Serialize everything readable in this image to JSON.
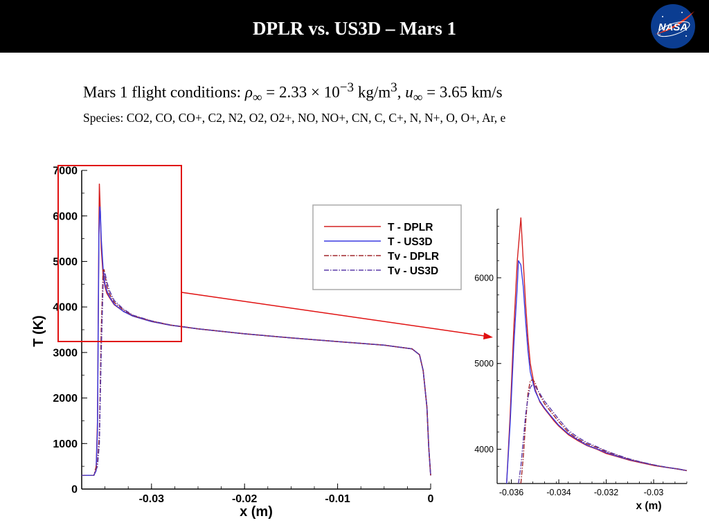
{
  "slide": {
    "title": "DPLR vs. US3D – Mars 1",
    "logo_text": "NASA",
    "conditions": {
      "prefix": "Mars 1 flight conditions: ",
      "rho_symbol": "ρ",
      "inf_sub": "∞",
      "rho_value": " = 2.33 × 10",
      "rho_exp": "−3",
      "rho_unit": " kg/m",
      "rho_unit_exp": "3",
      "sep": ", ",
      "u_symbol": "u",
      "u_value": " = 3.65 km/s"
    },
    "species": "Species: CO2, CO, CO+, C2, N2, O2, O2+, NO, NO+, CN, C, C+, N, N+, O, O+, Ar, e"
  },
  "colors": {
    "dplr": "#d42020",
    "us3d": "#3a3ae0",
    "tv_dplr": "#a0252a",
    "tv_us3d": "#5a3aa8",
    "highlight": "#e01010",
    "logo_blue": "#0b3d91",
    "logo_red": "#fc3d21"
  },
  "chart_data": [
    {
      "type": "line",
      "title": "",
      "xlabel": "x (m)",
      "ylabel": "T (K)",
      "xlim": [
        -0.0375,
        0.0
      ],
      "ylim": [
        0,
        7000
      ],
      "x_ticks": [
        -0.03,
        -0.02,
        -0.01,
        0
      ],
      "x_tick_labels": [
        "-0.03",
        "-0.02",
        "-0.01",
        "0"
      ],
      "y_ticks": [
        0,
        1000,
        2000,
        3000,
        4000,
        5000,
        6000,
        7000
      ],
      "y_tick_labels": [
        "0",
        "1000",
        "2000",
        "3000",
        "4000",
        "5000",
        "6000",
        "7000"
      ],
      "grid": false,
      "legend": "top-right",
      "series": [
        {
          "name": "T - DPLR",
          "style": "solid",
          "color_key": "dplr",
          "x": [
            -0.0375,
            -0.0362,
            -0.03595,
            -0.0358,
            -0.0357,
            -0.03565,
            -0.0356,
            -0.0355,
            -0.0354,
            -0.0352,
            -0.035,
            -0.0348,
            -0.0345,
            -0.034,
            -0.033,
            -0.032,
            -0.03,
            -0.028,
            -0.025,
            -0.02,
            -0.015,
            -0.01,
            -0.005,
            -0.002,
            -0.0012,
            -0.0008,
            -0.0004,
            -0.0002,
            0.0
          ],
          "y": [
            300,
            300,
            420,
            1500,
            4500,
            5800,
            6700,
            6100,
            5300,
            4700,
            4450,
            4300,
            4200,
            4050,
            3900,
            3800,
            3680,
            3600,
            3520,
            3410,
            3320,
            3240,
            3160,
            3080,
            2950,
            2600,
            1800,
            900,
            300
          ]
        },
        {
          "name": "T - US3D",
          "style": "solid",
          "color_key": "us3d",
          "x": [
            -0.0375,
            -0.0362,
            -0.03595,
            -0.0358,
            -0.0357,
            -0.03565,
            -0.03555,
            -0.0355,
            -0.0354,
            -0.0352,
            -0.035,
            -0.0348,
            -0.0345,
            -0.034,
            -0.033,
            -0.032,
            -0.03,
            -0.028,
            -0.025,
            -0.02,
            -0.015,
            -0.01,
            -0.005,
            -0.002,
            -0.0012,
            -0.0008,
            -0.0004,
            -0.0002,
            0.0
          ],
          "y": [
            300,
            300,
            400,
            1300,
            4200,
            5600,
            6200,
            6100,
            5500,
            4850,
            4500,
            4350,
            4220,
            4060,
            3900,
            3800,
            3680,
            3600,
            3520,
            3410,
            3320,
            3240,
            3160,
            3080,
            2950,
            2600,
            1800,
            900,
            300
          ]
        },
        {
          "name": "Tv - DPLR",
          "style": "dashdot",
          "color_key": "tv_dplr",
          "x": [
            -0.0375,
            -0.0362,
            -0.0358,
            -0.0356,
            -0.0354,
            -0.0352,
            -0.0351,
            -0.035,
            -0.0348,
            -0.0345,
            -0.034,
            -0.033,
            -0.032,
            -0.03,
            -0.028,
            -0.025,
            -0.02,
            -0.015,
            -0.01,
            -0.005,
            -0.002,
            -0.0012,
            -0.0008,
            -0.0004,
            -0.0002,
            0.0
          ],
          "y": [
            300,
            300,
            600,
            1200,
            3500,
            4800,
            4820,
            4700,
            4450,
            4280,
            4100,
            3930,
            3810,
            3690,
            3605,
            3520,
            3410,
            3320,
            3240,
            3160,
            3080,
            2950,
            2600,
            1800,
            900,
            300
          ]
        },
        {
          "name": "Tv - US3D",
          "style": "dashdot",
          "color_key": "tv_us3d",
          "x": [
            -0.0375,
            -0.0362,
            -0.0358,
            -0.0356,
            -0.0354,
            -0.0352,
            -0.0351,
            -0.035,
            -0.0348,
            -0.0345,
            -0.034,
            -0.033,
            -0.032,
            -0.03,
            -0.028,
            -0.025,
            -0.02,
            -0.015,
            -0.01,
            -0.005,
            -0.002,
            -0.0012,
            -0.0008,
            -0.0004,
            -0.0002,
            0.0
          ],
          "y": [
            300,
            300,
            500,
            1000,
            3000,
            4500,
            4700,
            4750,
            4550,
            4350,
            4140,
            3950,
            3820,
            3695,
            3605,
            3520,
            3410,
            3320,
            3240,
            3160,
            3080,
            2950,
            2600,
            1800,
            900,
            300
          ]
        }
      ]
    },
    {
      "type": "line",
      "title": "",
      "xlabel": "x (m)",
      "ylabel": "",
      "xlim": [
        -0.0366,
        -0.0286
      ],
      "ylim": [
        3600,
        6800
      ],
      "x_ticks": [
        -0.036,
        -0.034,
        -0.032,
        -0.03
      ],
      "x_tick_labels": [
        "-0.036",
        "-0.034",
        "-0.032",
        "-0.03"
      ],
      "y_ticks": [
        4000,
        5000,
        6000
      ],
      "y_tick_labels": [
        "4000",
        "5000",
        "6000"
      ],
      "grid": false,
      "legend": "none",
      "series": [
        {
          "name": "T - DPLR",
          "style": "solid",
          "color_key": "dplr",
          "x": [
            -0.0362,
            -0.03605,
            -0.0359,
            -0.03575,
            -0.0356,
            -0.0355,
            -0.0354,
            -0.0353,
            -0.0352,
            -0.035,
            -0.0348,
            -0.0346,
            -0.0344,
            -0.0342,
            -0.034,
            -0.0336,
            -0.0332,
            -0.0328,
            -0.0324,
            -0.032,
            -0.0315,
            -0.031,
            -0.0305,
            -0.03,
            -0.0295,
            -0.029,
            -0.0286
          ],
          "y": [
            3600,
            4400,
            5400,
            6200,
            6700,
            6200,
            5700,
            5300,
            5000,
            4700,
            4550,
            4470,
            4400,
            4330,
            4270,
            4170,
            4100,
            4040,
            4000,
            3950,
            3910,
            3870,
            3840,
            3810,
            3790,
            3770,
            3750
          ]
        },
        {
          "name": "T - US3D",
          "style": "solid",
          "color_key": "us3d",
          "x": [
            -0.0362,
            -0.03605,
            -0.0359,
            -0.03575,
            -0.0357,
            -0.0356,
            -0.0355,
            -0.0354,
            -0.0353,
            -0.0352,
            -0.035,
            -0.0348,
            -0.0346,
            -0.0344,
            -0.0342,
            -0.034,
            -0.0336,
            -0.0332,
            -0.0328,
            -0.0324,
            -0.032,
            -0.0315,
            -0.031,
            -0.0305,
            -0.03,
            -0.0295,
            -0.029,
            -0.0286
          ],
          "y": [
            3600,
            4300,
            5200,
            5900,
            6200,
            6150,
            5900,
            5500,
            5150,
            4900,
            4680,
            4560,
            4480,
            4410,
            4345,
            4280,
            4180,
            4110,
            4045,
            4005,
            3960,
            3915,
            3875,
            3845,
            3815,
            3790,
            3770,
            3750
          ]
        },
        {
          "name": "Tv - DPLR",
          "style": "dashdot",
          "color_key": "tv_dplr",
          "x": [
            -0.0356,
            -0.0355,
            -0.0354,
            -0.0353,
            -0.0352,
            -0.0351,
            -0.035,
            -0.0349,
            -0.0348,
            -0.0346,
            -0.0344,
            -0.0342,
            -0.034,
            -0.0336,
            -0.0332,
            -0.0328,
            -0.0324,
            -0.032,
            -0.0315,
            -0.031,
            -0.0305,
            -0.03,
            -0.0295,
            -0.029,
            -0.0286
          ],
          "y": [
            3600,
            3900,
            4300,
            4650,
            4800,
            4810,
            4780,
            4700,
            4630,
            4530,
            4460,
            4390,
            4320,
            4200,
            4120,
            4060,
            4020,
            3970,
            3925,
            3880,
            3848,
            3815,
            3790,
            3770,
            3750
          ]
        },
        {
          "name": "Tv - US3D",
          "style": "dashdot",
          "color_key": "tv_us3d",
          "x": [
            -0.0357,
            -0.0356,
            -0.0355,
            -0.0354,
            -0.0353,
            -0.0352,
            -0.0351,
            -0.035,
            -0.0349,
            -0.0348,
            -0.0346,
            -0.0344,
            -0.0342,
            -0.034,
            -0.0336,
            -0.0332,
            -0.0328,
            -0.0324,
            -0.032,
            -0.0315,
            -0.031,
            -0.0305,
            -0.03,
            -0.0295,
            -0.029,
            -0.0286
          ],
          "y": [
            3600,
            3800,
            4100,
            4400,
            4600,
            4720,
            4760,
            4740,
            4690,
            4650,
            4560,
            4490,
            4420,
            4350,
            4220,
            4140,
            4075,
            4030,
            3980,
            3930,
            3885,
            3850,
            3818,
            3792,
            3772,
            3752
          ]
        }
      ]
    }
  ]
}
